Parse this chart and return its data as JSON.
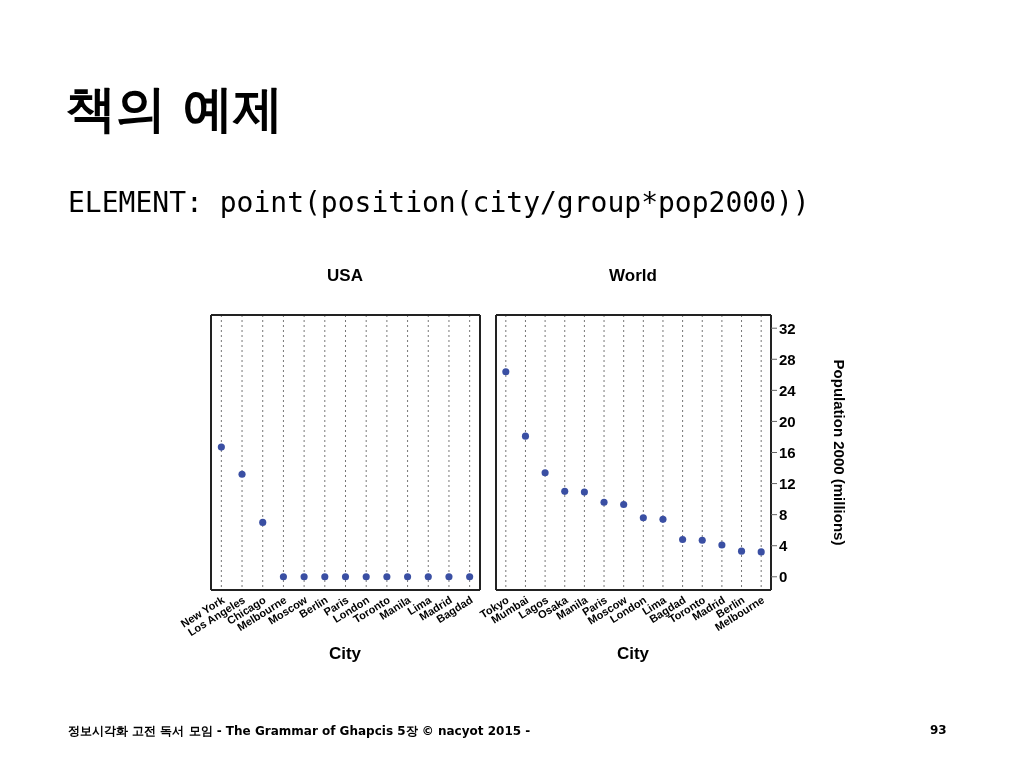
{
  "chart_data": [
    {
      "type": "scatter",
      "title": "USA",
      "xlabel": "City",
      "categories": [
        "New York",
        "Los Angeles",
        "Chicago",
        "Melbourne",
        "Moscow",
        "Berlin",
        "Paris",
        "London",
        "Toronto",
        "Manila",
        "Lima",
        "Madrid",
        "Bagdad"
      ],
      "series": [
        {
          "color": "#3a4fa3",
          "values": [
            16.7,
            13.2,
            7.0,
            0,
            0,
            0,
            0,
            0,
            0,
            0,
            0,
            0,
            0
          ]
        }
      ],
      "ylim": [
        -1.7,
        33.7
      ],
      "yticks": [
        0,
        4,
        8,
        12,
        16,
        20,
        24,
        28,
        32
      ],
      "grid": "x",
      "marker": "circle",
      "tick_labels": "x",
      "annotations": [
        "책의 예제",
        "ELEMENT: point(position(city/group*pop2000))",
        "정보시각화 고전 독서 모임 - The Grammar of Ghapcis 5장 © nacyot 2015 -",
        "93"
      ]
    },
    {
      "type": "scatter",
      "title": "World",
      "xlabel": "City",
      "ylabel": "Population 2000 (millions)",
      "categories": [
        "Tokyo",
        "Mumbai",
        "Lagos",
        "Osaka",
        "Manila",
        "Paris",
        "Moscow",
        "London",
        "Lima",
        "Bagdad",
        "Toronto",
        "Madrid",
        "Berlin",
        "Melbourne"
      ],
      "series": [
        {
          "color": "#3a4fa3",
          "values": [
            26.4,
            18.1,
            13.4,
            11.0,
            10.9,
            9.6,
            9.3,
            7.6,
            7.4,
            4.8,
            4.7,
            4.1,
            3.3,
            3.2
          ]
        }
      ],
      "ylim": [
        -1.7,
        33.7
      ],
      "yticks": [
        0,
        4,
        8,
        12,
        16,
        20,
        24,
        28,
        32
      ],
      "grid": "x",
      "marker": "circle"
    }
  ]
}
